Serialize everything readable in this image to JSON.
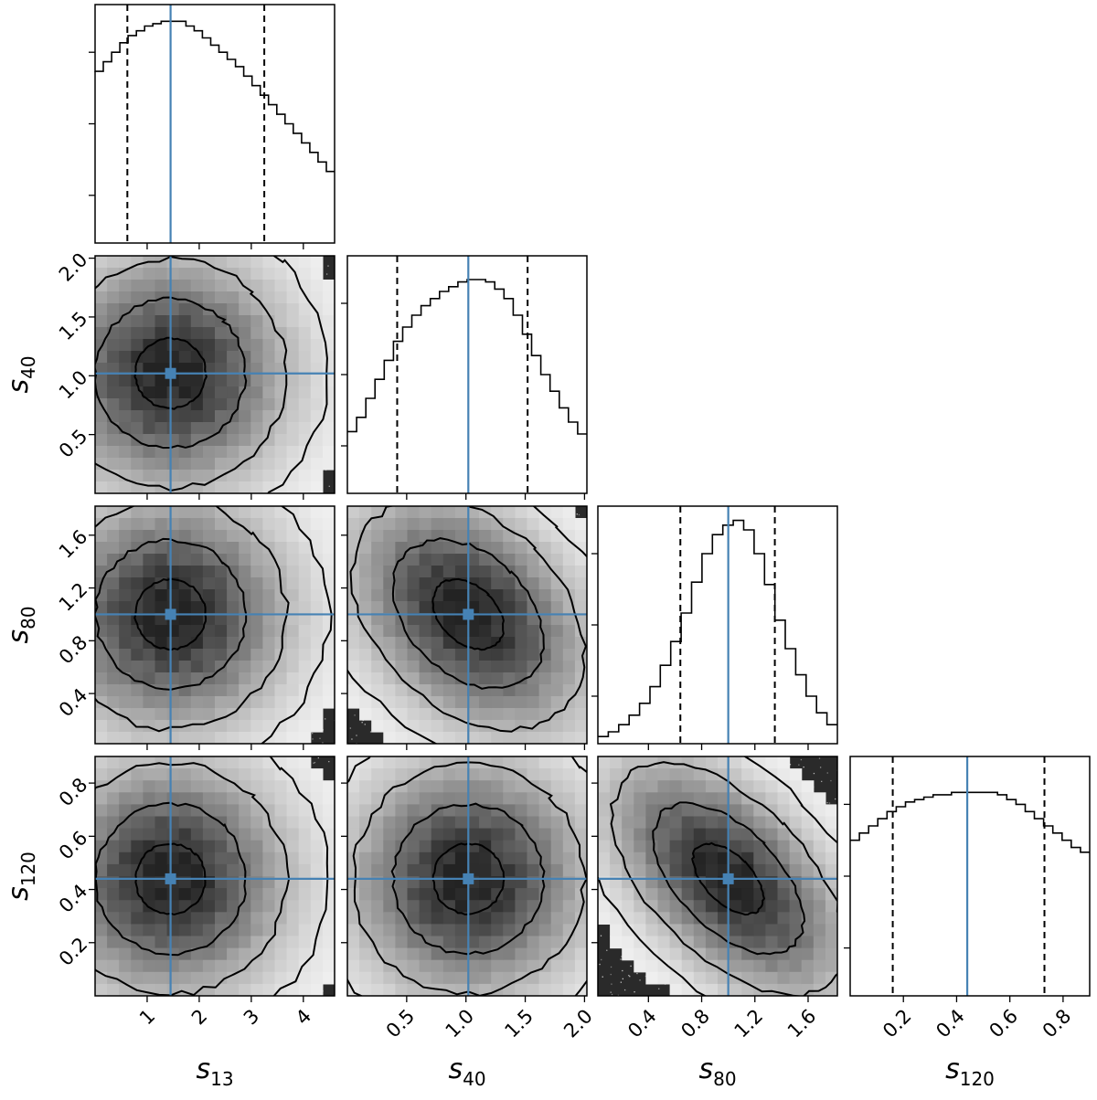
{
  "chart_data": {
    "type": "corner",
    "parameters": [
      {
        "key": "s13",
        "label_main": "s",
        "label_sub": "13",
        "range": [
          0.0,
          4.6
        ],
        "ticks": [
          1,
          2,
          3,
          4
        ],
        "tick_labels": [
          "1",
          "2",
          "3",
          "4"
        ],
        "truth": 1.45,
        "quantiles": [
          0.62,
          3.25
        ]
      },
      {
        "key": "s40",
        "label_main": "s",
        "label_sub": "40",
        "range": [
          0.0,
          2.02
        ],
        "ticks": [
          0.5,
          1.0,
          1.5,
          2.0
        ],
        "tick_labels": [
          "0.5",
          "1.0",
          "1.5",
          "2.0"
        ],
        "truth": 1.02,
        "quantiles": [
          0.42,
          1.52
        ]
      },
      {
        "key": "s80",
        "label_main": "s",
        "label_sub": "80",
        "range": [
          0.02,
          1.82
        ],
        "ticks": [
          0.4,
          0.8,
          1.2,
          1.6
        ],
        "tick_labels": [
          "0.4",
          "0.8",
          "1.2",
          "1.6"
        ],
        "truth": 1.0,
        "quantiles": [
          0.64,
          1.35
        ]
      },
      {
        "key": "s120",
        "label_main": "s",
        "label_sub": "120",
        "range": [
          0.0,
          0.9
        ],
        "ticks": [
          0.2,
          0.4,
          0.6,
          0.8
        ],
        "tick_labels": [
          "0.2",
          "0.4",
          "0.6",
          "0.8"
        ],
        "truth": 0.44,
        "quantiles": [
          0.16,
          0.73
        ]
      }
    ],
    "histograms": {
      "s13": [
        0.72,
        0.76,
        0.8,
        0.84,
        0.87,
        0.89,
        0.91,
        0.92,
        0.93,
        0.93,
        0.93,
        0.91,
        0.89,
        0.86,
        0.83,
        0.8,
        0.77,
        0.74,
        0.7,
        0.66,
        0.62,
        0.58,
        0.54,
        0.5,
        0.46,
        0.42,
        0.38,
        0.34,
        0.3
      ],
      "s40": [
        0.26,
        0.32,
        0.4,
        0.48,
        0.56,
        0.64,
        0.7,
        0.75,
        0.79,
        0.82,
        0.85,
        0.87,
        0.89,
        0.9,
        0.9,
        0.89,
        0.86,
        0.82,
        0.75,
        0.67,
        0.58,
        0.5,
        0.43,
        0.36,
        0.3,
        0.25
      ],
      "s80": [
        0.03,
        0.05,
        0.08,
        0.12,
        0.17,
        0.24,
        0.33,
        0.43,
        0.55,
        0.68,
        0.8,
        0.88,
        0.92,
        0.94,
        0.9,
        0.8,
        0.67,
        0.52,
        0.4,
        0.29,
        0.2,
        0.13,
        0.08
      ],
      "s120": [
        0.65,
        0.68,
        0.71,
        0.74,
        0.77,
        0.79,
        0.81,
        0.82,
        0.83,
        0.84,
        0.84,
        0.85,
        0.85,
        0.85,
        0.85,
        0.85,
        0.84,
        0.82,
        0.8,
        0.77,
        0.74,
        0.71,
        0.68,
        0.65,
        0.62,
        0.6
      ]
    },
    "pairs": [
      {
        "x": "s13",
        "y": "s40",
        "corr": 0.0
      },
      {
        "x": "s13",
        "y": "s80",
        "corr": 0.0
      },
      {
        "x": "s40",
        "y": "s80",
        "corr": -0.35
      },
      {
        "x": "s13",
        "y": "s120",
        "corr": 0.0
      },
      {
        "x": "s40",
        "y": "s120",
        "corr": 0.0
      },
      {
        "x": "s80",
        "y": "s120",
        "corr": -0.55
      }
    ],
    "truth_color": "#4682b4",
    "contour_color": "#000000",
    "quantile_line_style": "dashed",
    "title": "",
    "xlabel": "",
    "ylabel": ""
  }
}
